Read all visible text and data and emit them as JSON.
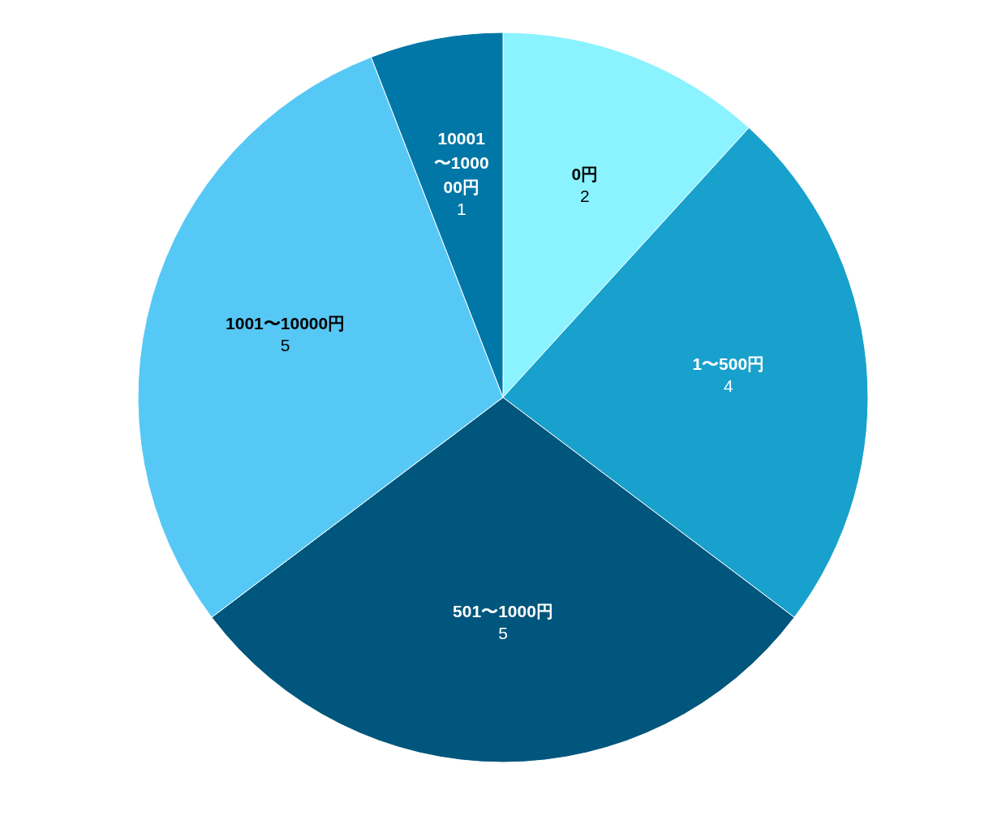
{
  "chart_data": {
    "type": "pie",
    "categories": [
      "0円",
      "1〜500円",
      "501〜1000円",
      "1001〜10000円",
      "10001〜100000円"
    ],
    "values": [
      2,
      4,
      5,
      5,
      1
    ],
    "colors": [
      "#8af3ff",
      "#18a1cd",
      "#00567c",
      "#56c8f5",
      "#0077a6"
    ],
    "data_labels": true
  }
}
